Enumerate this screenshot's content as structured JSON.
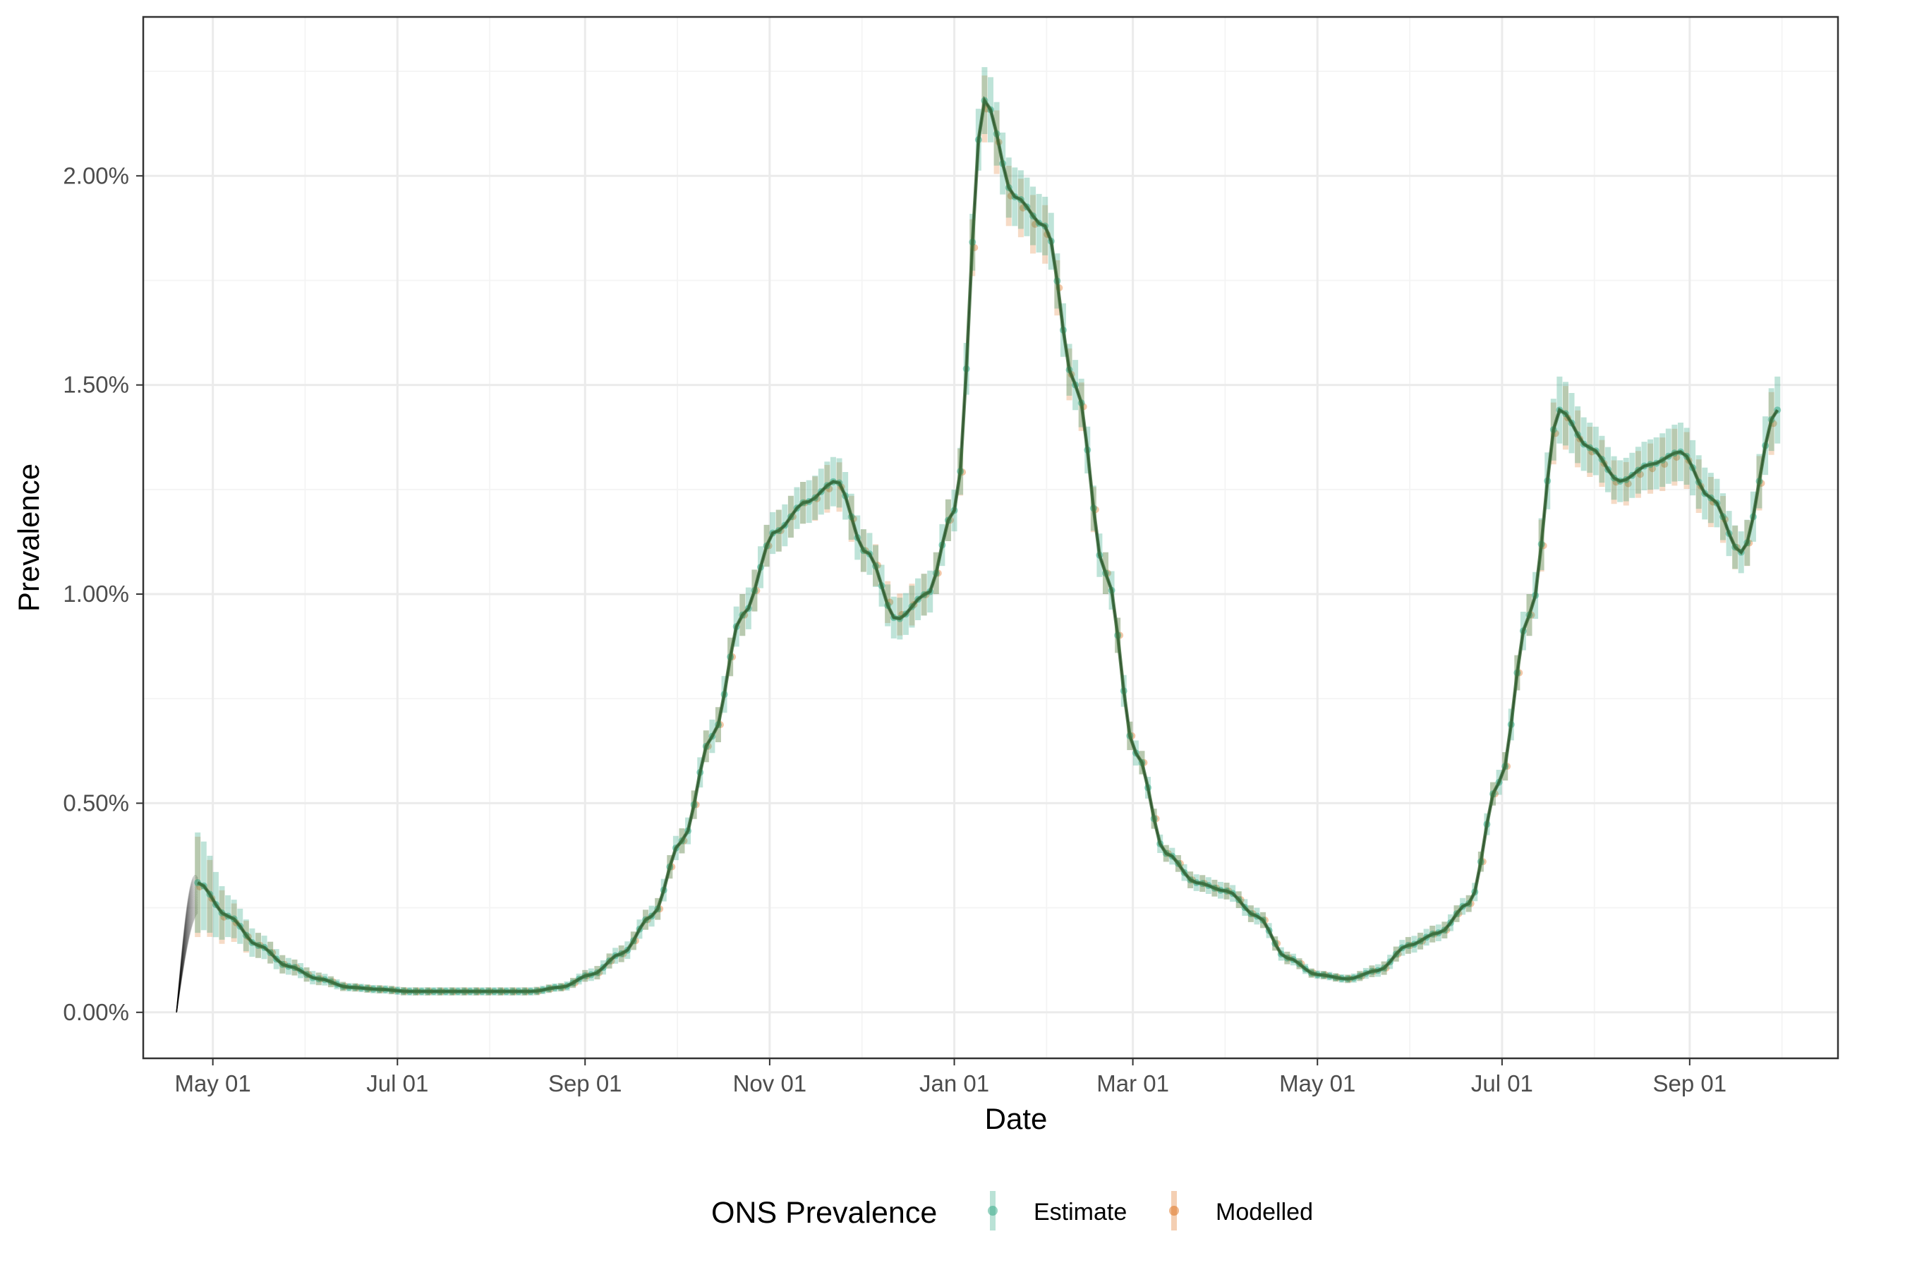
{
  "chart_data": {
    "type": "line",
    "xlabel": "Date",
    "ylabel": "Prevalence",
    "x_ticks": [
      "May 01",
      "Jul 01",
      "Sep 01",
      "Nov 01",
      "Jan 01",
      "Mar 01",
      "May 01",
      "Jul 01",
      "Sep 01"
    ],
    "y_ticks": [
      "0.00%",
      "0.50%",
      "1.00%",
      "1.50%",
      "2.00%"
    ],
    "xlim": [
      "2020-04-08",
      "2021-10-20"
    ],
    "ylim": [
      -0.11,
      2.38
    ],
    "grid": true,
    "legend": {
      "title": "ONS Prevalence",
      "position": "bottom",
      "entries": [
        "Estimate",
        "Modelled"
      ]
    },
    "colors": {
      "Estimate": "#1b9e77",
      "Modelled": "#d95f02",
      "sample_lines": "#000000",
      "grid": "#ebebeb",
      "panel_border": "#333333"
    },
    "series": [
      {
        "name": "Estimate",
        "x": [
          "2020-04-26",
          "2020-05-06",
          "2020-05-16",
          "2020-05-26",
          "2020-06-05",
          "2020-06-15",
          "2020-06-25",
          "2020-07-05",
          "2020-07-15",
          "2020-07-25",
          "2020-08-04",
          "2020-08-14",
          "2020-08-24",
          "2020-09-03",
          "2020-09-13",
          "2020-09-23",
          "2020-10-03",
          "2020-10-13",
          "2020-10-23",
          "2020-11-03",
          "2020-11-13",
          "2020-11-23",
          "2020-12-03",
          "2020-12-13",
          "2020-12-23",
          "2021-01-01",
          "2021-01-11",
          "2021-01-21",
          "2021-01-31",
          "2021-02-10",
          "2021-02-20",
          "2021-03-02",
          "2021-03-12",
          "2021-03-22",
          "2021-04-01",
          "2021-04-11",
          "2021-04-21",
          "2021-05-01",
          "2021-05-11",
          "2021-05-21",
          "2021-05-31",
          "2021-06-10",
          "2021-06-20",
          "2021-06-30",
          "2021-07-10",
          "2021-07-20",
          "2021-07-30",
          "2021-08-09",
          "2021-08-19",
          "2021-08-29",
          "2021-09-08",
          "2021-09-18",
          "2021-09-30"
        ],
        "y": [
          0.31,
          0.23,
          0.16,
          0.11,
          0.08,
          0.06,
          0.055,
          0.05,
          0.05,
          0.05,
          0.05,
          0.05,
          0.06,
          0.09,
          0.14,
          0.23,
          0.41,
          0.66,
          0.95,
          1.15,
          1.22,
          1.27,
          1.1,
          0.94,
          1.0,
          1.2,
          2.18,
          1.95,
          1.88,
          1.5,
          1.05,
          0.62,
          0.38,
          0.31,
          0.29,
          0.23,
          0.13,
          0.09,
          0.08,
          0.1,
          0.16,
          0.19,
          0.26,
          0.55,
          0.95,
          1.44,
          1.35,
          1.27,
          1.31,
          1.34,
          1.23,
          1.1,
          1.44
        ],
        "ci_halfwidth": [
          0.12,
          0.05,
          0.03,
          0.02,
          0.015,
          0.01,
          0.01,
          0.01,
          0.01,
          0.01,
          0.01,
          0.01,
          0.01,
          0.015,
          0.02,
          0.025,
          0.03,
          0.04,
          0.05,
          0.05,
          0.05,
          0.06,
          0.05,
          0.05,
          0.05,
          0.05,
          0.08,
          0.07,
          0.07,
          0.06,
          0.05,
          0.03,
          0.02,
          0.02,
          0.02,
          0.02,
          0.015,
          0.01,
          0.01,
          0.015,
          0.02,
          0.02,
          0.02,
          0.03,
          0.05,
          0.08,
          0.06,
          0.05,
          0.06,
          0.07,
          0.06,
          0.05,
          0.08
        ]
      },
      {
        "name": "Modelled",
        "x": [
          "2020-04-26",
          "2020-05-06",
          "2020-05-16",
          "2020-05-26",
          "2020-06-05",
          "2020-06-15",
          "2020-06-25",
          "2020-07-05",
          "2020-07-15",
          "2020-07-25",
          "2020-08-04",
          "2020-08-14",
          "2020-08-24",
          "2020-09-03",
          "2020-09-13",
          "2020-09-23",
          "2020-10-03",
          "2020-10-13",
          "2020-10-23",
          "2020-11-03",
          "2020-11-13",
          "2020-11-23",
          "2020-12-03",
          "2020-12-13",
          "2020-12-23",
          "2021-01-01",
          "2021-01-11",
          "2021-01-21",
          "2021-01-31",
          "2021-02-10",
          "2021-02-20",
          "2021-03-02",
          "2021-03-12",
          "2021-03-22",
          "2021-04-01",
          "2021-04-11",
          "2021-04-21",
          "2021-05-01",
          "2021-05-11",
          "2021-05-21",
          "2021-05-31",
          "2021-06-10",
          "2021-06-20",
          "2021-06-30",
          "2021-07-10",
          "2021-07-20",
          "2021-07-30",
          "2021-08-09",
          "2021-08-19",
          "2021-08-29",
          "2021-09-08",
          "2021-09-18",
          "2021-09-30"
        ],
        "y": [
          0.3,
          0.22,
          0.16,
          0.11,
          0.08,
          0.06,
          0.055,
          0.05,
          0.05,
          0.05,
          0.05,
          0.05,
          0.06,
          0.09,
          0.14,
          0.23,
          0.41,
          0.66,
          0.95,
          1.15,
          1.22,
          1.26,
          1.1,
          0.95,
          1.0,
          1.2,
          2.16,
          1.93,
          1.86,
          1.49,
          1.05,
          0.62,
          0.38,
          0.31,
          0.29,
          0.23,
          0.13,
          0.09,
          0.08,
          0.1,
          0.16,
          0.19,
          0.26,
          0.55,
          0.95,
          1.43,
          1.34,
          1.26,
          1.3,
          1.33,
          1.22,
          1.1,
          1.43
        ]
      }
    ]
  }
}
